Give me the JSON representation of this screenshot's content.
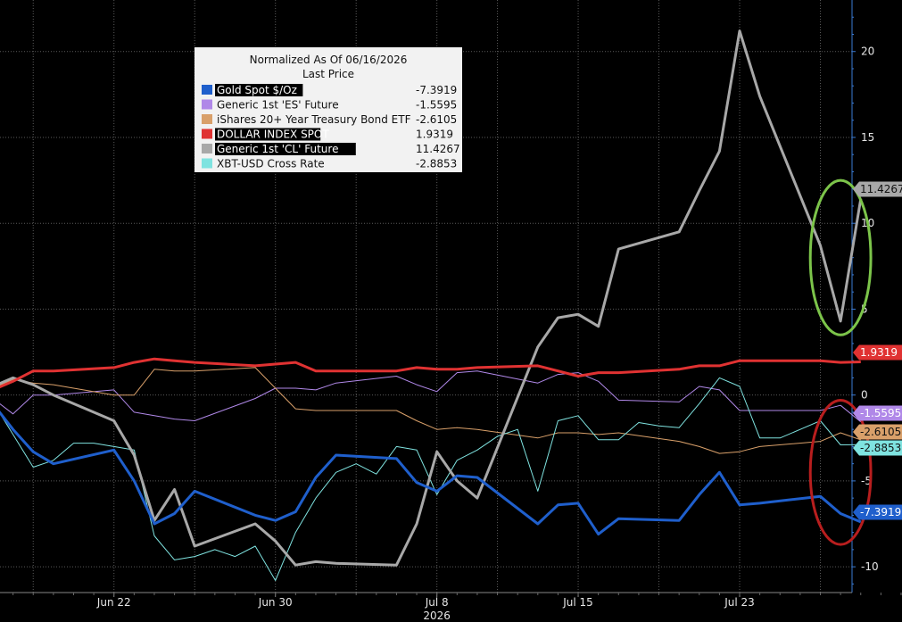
{
  "chart_data": {
    "type": "line",
    "title": "Normalized As Of 06/16/2026",
    "subtitle": "Last Price",
    "year_label": "2026",
    "x_ticks": [
      {
        "date": "2026-06-22",
        "label": "Jun 22"
      },
      {
        "date": "2026-06-30",
        "label": "Jun 30"
      },
      {
        "date": "2026-07-08",
        "label": "Jul 8"
      },
      {
        "date": "2026-07-15",
        "label": "Jul 15"
      },
      {
        "date": "2026-07-23",
        "label": "Jul 23"
      }
    ],
    "xlim": [
      "2026-06-16",
      "2026-07-31"
    ],
    "ylim": [
      -11.5,
      23
    ],
    "y_ticks": [
      -10,
      -5,
      0,
      5,
      10,
      15,
      20
    ],
    "grid": true,
    "legend_position": "top-left",
    "series": [
      {
        "name": "Gold Spot $/Oz",
        "last": "-7.3919",
        "color": "#1f5fcc",
        "width": 3,
        "label_highlight": true,
        "points": [
          [
            "2026-06-16",
            -0.5
          ],
          [
            "2026-06-17",
            -2.0
          ],
          [
            "2026-06-18",
            -3.3
          ],
          [
            "2026-06-19",
            -4.0
          ],
          [
            "2026-06-22",
            -3.2
          ],
          [
            "2026-06-23",
            -5.0
          ],
          [
            "2026-06-24",
            -7.5
          ],
          [
            "2026-06-25",
            -6.9
          ],
          [
            "2026-06-26",
            -5.6
          ],
          [
            "2026-06-29",
            -7.0
          ],
          [
            "2026-06-30",
            -7.3
          ],
          [
            "2026-07-01",
            -6.8
          ],
          [
            "2026-07-02",
            -4.8
          ],
          [
            "2026-07-03",
            -3.5
          ],
          [
            "2026-07-06",
            -3.7
          ],
          [
            "2026-07-07",
            -5.1
          ],
          [
            "2026-07-08",
            -5.6
          ],
          [
            "2026-07-09",
            -4.7
          ],
          [
            "2026-07-10",
            -4.8
          ],
          [
            "2026-07-13",
            -7.5
          ],
          [
            "2026-07-14",
            -6.4
          ],
          [
            "2026-07-15",
            -6.3
          ],
          [
            "2026-07-16",
            -8.1
          ],
          [
            "2026-07-17",
            -7.2
          ],
          [
            "2026-07-20",
            -7.3
          ],
          [
            "2026-07-21",
            -5.8
          ],
          [
            "2026-07-22",
            -4.5
          ],
          [
            "2026-07-23",
            -6.4
          ],
          [
            "2026-07-24",
            -6.3
          ],
          [
            "2026-07-27",
            -5.9
          ],
          [
            "2026-07-28",
            -6.9
          ],
          [
            "2026-07-29",
            -7.3919
          ]
        ]
      },
      {
        "name": "Generic 1st 'ES' Future",
        "last": "-1.5595",
        "color": "#b088e8",
        "width": 1,
        "label_highlight": false,
        "points": [
          [
            "2026-06-16",
            -0.2
          ],
          [
            "2026-06-17",
            -1.1
          ],
          [
            "2026-06-18",
            0.0
          ],
          [
            "2026-06-19",
            0.0
          ],
          [
            "2026-06-22",
            0.3
          ],
          [
            "2026-06-23",
            -1.0
          ],
          [
            "2026-06-24",
            -1.2
          ],
          [
            "2026-06-25",
            -1.4
          ],
          [
            "2026-06-26",
            -1.5
          ],
          [
            "2026-06-29",
            -0.2
          ],
          [
            "2026-06-30",
            0.4
          ],
          [
            "2026-07-01",
            0.4
          ],
          [
            "2026-07-02",
            0.3
          ],
          [
            "2026-07-03",
            0.7
          ],
          [
            "2026-07-06",
            1.1
          ],
          [
            "2026-07-07",
            0.6
          ],
          [
            "2026-07-08",
            0.2
          ],
          [
            "2026-07-09",
            1.3
          ],
          [
            "2026-07-10",
            1.4
          ],
          [
            "2026-07-13",
            0.7
          ],
          [
            "2026-07-14",
            1.2
          ],
          [
            "2026-07-15",
            1.3
          ],
          [
            "2026-07-16",
            0.8
          ],
          [
            "2026-07-17",
            -0.3
          ],
          [
            "2026-07-20",
            -0.4
          ],
          [
            "2026-07-21",
            0.5
          ],
          [
            "2026-07-22",
            0.3
          ],
          [
            "2026-07-23",
            -0.9
          ],
          [
            "2026-07-24",
            -0.9
          ],
          [
            "2026-07-27",
            -0.9
          ],
          [
            "2026-07-28",
            -0.6
          ],
          [
            "2026-07-29",
            -1.5595
          ]
        ]
      },
      {
        "name": "iShares 20+ Year Treasury Bond ETF",
        "last": "-2.6105",
        "color": "#d9a06a",
        "width": 1,
        "label_highlight": false,
        "points": [
          [
            "2026-06-16",
            0.4
          ],
          [
            "2026-06-17",
            0.9
          ],
          [
            "2026-06-18",
            0.7
          ],
          [
            "2026-06-19",
            0.6
          ],
          [
            "2026-06-22",
            0.0
          ],
          [
            "2026-06-23",
            0.0
          ],
          [
            "2026-06-24",
            1.5
          ],
          [
            "2026-06-25",
            1.4
          ],
          [
            "2026-06-26",
            1.4
          ],
          [
            "2026-06-29",
            1.6
          ],
          [
            "2026-06-30",
            0.4
          ],
          [
            "2026-07-01",
            -0.8
          ],
          [
            "2026-07-02",
            -0.9
          ],
          [
            "2026-07-03",
            -0.9
          ],
          [
            "2026-07-06",
            -0.9
          ],
          [
            "2026-07-07",
            -1.5
          ],
          [
            "2026-07-08",
            -2.0
          ],
          [
            "2026-07-09",
            -1.9
          ],
          [
            "2026-07-10",
            -2.0
          ],
          [
            "2026-07-13",
            -2.5
          ],
          [
            "2026-07-14",
            -2.2
          ],
          [
            "2026-07-15",
            -2.2
          ],
          [
            "2026-07-16",
            -2.3
          ],
          [
            "2026-07-17",
            -2.2
          ],
          [
            "2026-07-20",
            -2.7
          ],
          [
            "2026-07-21",
            -3.0
          ],
          [
            "2026-07-22",
            -3.4
          ],
          [
            "2026-07-23",
            -3.3
          ],
          [
            "2026-07-24",
            -3.0
          ],
          [
            "2026-07-27",
            -2.7
          ],
          [
            "2026-07-28",
            -2.2
          ],
          [
            "2026-07-29",
            -2.6105
          ]
        ]
      },
      {
        "name": "DOLLAR INDEX SPOT",
        "last": "1.9319",
        "color": "#e03232",
        "width": 3,
        "label_highlight": true,
        "points": [
          [
            "2026-06-16",
            0.3
          ],
          [
            "2026-06-17",
            0.8
          ],
          [
            "2026-06-18",
            1.4
          ],
          [
            "2026-06-19",
            1.4
          ],
          [
            "2026-06-22",
            1.6
          ],
          [
            "2026-06-23",
            1.9
          ],
          [
            "2026-06-24",
            2.1
          ],
          [
            "2026-06-25",
            2.0
          ],
          [
            "2026-06-26",
            1.9
          ],
          [
            "2026-06-29",
            1.7
          ],
          [
            "2026-06-30",
            1.8
          ],
          [
            "2026-07-01",
            1.9
          ],
          [
            "2026-07-02",
            1.4
          ],
          [
            "2026-07-03",
            1.4
          ],
          [
            "2026-07-06",
            1.4
          ],
          [
            "2026-07-07",
            1.6
          ],
          [
            "2026-07-08",
            1.5
          ],
          [
            "2026-07-09",
            1.5
          ],
          [
            "2026-07-10",
            1.6
          ],
          [
            "2026-07-13",
            1.7
          ],
          [
            "2026-07-14",
            1.4
          ],
          [
            "2026-07-15",
            1.1
          ],
          [
            "2026-07-16",
            1.3
          ],
          [
            "2026-07-17",
            1.3
          ],
          [
            "2026-07-20",
            1.5
          ],
          [
            "2026-07-21",
            1.7
          ],
          [
            "2026-07-22",
            1.7
          ],
          [
            "2026-07-23",
            2.0
          ],
          [
            "2026-07-24",
            2.0
          ],
          [
            "2026-07-27",
            2.0
          ],
          [
            "2026-07-28",
            1.9
          ],
          [
            "2026-07-29",
            1.9319
          ]
        ]
      },
      {
        "name": "Generic 1st 'CL' Future",
        "last": "11.4267",
        "color": "#a8a8a8",
        "width": 3,
        "label_highlight": true,
        "points": [
          [
            "2026-06-16",
            0.5
          ],
          [
            "2026-06-17",
            1.0
          ],
          [
            "2026-06-18",
            0.6
          ],
          [
            "2026-06-19",
            0.0
          ],
          [
            "2026-06-22",
            -1.5
          ],
          [
            "2026-06-23",
            -3.5
          ],
          [
            "2026-06-24",
            -7.3
          ],
          [
            "2026-06-25",
            -5.5
          ],
          [
            "2026-06-26",
            -8.8
          ],
          [
            "2026-06-29",
            -7.5
          ],
          [
            "2026-06-30",
            -8.5
          ],
          [
            "2026-07-01",
            -9.9
          ],
          [
            "2026-07-02",
            -9.7
          ],
          [
            "2026-07-03",
            -9.8
          ],
          [
            "2026-07-06",
            -9.9
          ],
          [
            "2026-07-07",
            -7.5
          ],
          [
            "2026-07-08",
            -3.3
          ],
          [
            "2026-07-09",
            -5.0
          ],
          [
            "2026-07-10",
            -6.0
          ],
          [
            "2026-07-13",
            2.8
          ],
          [
            "2026-07-14",
            4.5
          ],
          [
            "2026-07-15",
            4.7
          ],
          [
            "2026-07-16",
            4.0
          ],
          [
            "2026-07-17",
            8.5
          ],
          [
            "2026-07-20",
            9.5
          ],
          [
            "2026-07-21",
            11.9
          ],
          [
            "2026-07-22",
            14.2
          ],
          [
            "2026-07-23",
            21.2
          ],
          [
            "2026-07-24",
            17.4
          ],
          [
            "2026-07-27",
            8.7
          ],
          [
            "2026-07-28",
            4.3
          ],
          [
            "2026-07-29",
            11.4267
          ]
        ]
      },
      {
        "name": "XBT-USD Cross Rate",
        "last": "-2.8853",
        "color": "#7fe3e0",
        "width": 1,
        "label_highlight": false,
        "points": [
          [
            "2026-06-16",
            -0.4
          ],
          [
            "2026-06-17",
            -2.3
          ],
          [
            "2026-06-18",
            -4.2
          ],
          [
            "2026-06-19",
            -3.8
          ],
          [
            "2026-06-20",
            -2.8
          ],
          [
            "2026-06-21",
            -2.8
          ],
          [
            "2026-06-22",
            -3.0
          ],
          [
            "2026-06-23",
            -3.2
          ],
          [
            "2026-06-24",
            -8.2
          ],
          [
            "2026-06-25",
            -9.6
          ],
          [
            "2026-06-26",
            -9.4
          ],
          [
            "2026-06-27",
            -9.0
          ],
          [
            "2026-06-28",
            -9.4
          ],
          [
            "2026-06-29",
            -8.8
          ],
          [
            "2026-06-30",
            -10.8
          ],
          [
            "2026-07-01",
            -8.0
          ],
          [
            "2026-07-02",
            -6.0
          ],
          [
            "2026-07-03",
            -4.5
          ],
          [
            "2026-07-04",
            -4.0
          ],
          [
            "2026-07-05",
            -4.6
          ],
          [
            "2026-07-06",
            -3.0
          ],
          [
            "2026-07-07",
            -3.2
          ],
          [
            "2026-07-08",
            -5.8
          ],
          [
            "2026-07-09",
            -3.8
          ],
          [
            "2026-07-10",
            -3.2
          ],
          [
            "2026-07-11",
            -2.4
          ],
          [
            "2026-07-12",
            -2.0
          ],
          [
            "2026-07-13",
            -5.6
          ],
          [
            "2026-07-14",
            -1.5
          ],
          [
            "2026-07-15",
            -1.2
          ],
          [
            "2026-07-16",
            -2.6
          ],
          [
            "2026-07-17",
            -2.6
          ],
          [
            "2026-07-18",
            -1.6
          ],
          [
            "2026-07-19",
            -1.8
          ],
          [
            "2026-07-20",
            -1.9
          ],
          [
            "2026-07-21",
            -0.5
          ],
          [
            "2026-07-22",
            1.0
          ],
          [
            "2026-07-23",
            0.5
          ],
          [
            "2026-07-24",
            -2.5
          ],
          [
            "2026-07-25",
            -2.5
          ],
          [
            "2026-07-26",
            -2.0
          ],
          [
            "2026-07-27",
            -1.5
          ],
          [
            "2026-07-28",
            -2.9
          ],
          [
            "2026-07-29",
            -2.8853
          ]
        ]
      }
    ],
    "annotations": [
      {
        "type": "ellipse",
        "color": "#7cc44a",
        "center": [
          "2026-07-28",
          8.0
        ],
        "radius_days": 1.5,
        "radius_y": 4.5
      },
      {
        "type": "ellipse",
        "color": "#b81e1e",
        "center": [
          "2026-07-28",
          -4.5
        ],
        "radius_days": 1.5,
        "radius_y": 4.2
      }
    ]
  }
}
